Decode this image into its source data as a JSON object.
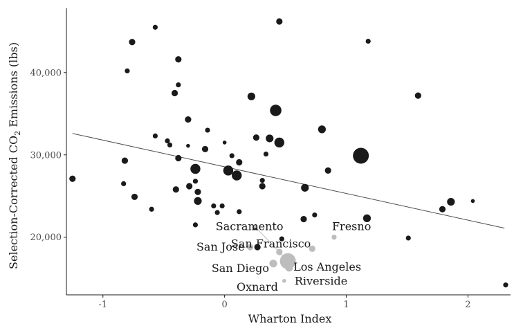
{
  "chart_data": {
    "type": "scatter",
    "xlabel": "Wharton Index",
    "ylabel": {
      "prefix": "Selection-Corrected CO",
      "subscript": "2",
      "suffix": " Emissions (lbs)"
    },
    "xlim": [
      -1.3,
      2.35
    ],
    "ylim": [
      13000,
      47800
    ],
    "x_ticks": [
      -1,
      0,
      1,
      2
    ],
    "x_tick_labels": [
      "-1",
      "0",
      "1",
      "2"
    ],
    "y_ticks": [
      20000,
      30000,
      40000
    ],
    "y_tick_labels": [
      "20,000",
      "30,000",
      "40,000"
    ],
    "grid": false,
    "colors": {
      "points": "#1a1a1a",
      "highlight": "#bdbdbd",
      "fit_line": "#4d4d4d",
      "axis": "#1a1a1a"
    },
    "fit_line": {
      "x": [
        -1.25,
        2.3
      ],
      "y": [
        32600,
        21100
      ]
    },
    "series": [
      {
        "values": [
          {
            "x": -1.25,
            "y": 27100,
            "size": 2
          },
          {
            "x": -0.82,
            "y": 29300,
            "size": 2
          },
          {
            "x": -0.83,
            "y": 26500,
            "size": 1
          },
          {
            "x": -0.8,
            "y": 40200,
            "size": 1
          },
          {
            "x": -0.76,
            "y": 43700,
            "size": 2
          },
          {
            "x": -0.74,
            "y": 24900,
            "size": 2
          },
          {
            "x": -0.6,
            "y": 23400,
            "size": 1
          },
          {
            "x": -0.57,
            "y": 45500,
            "size": 1
          },
          {
            "x": -0.57,
            "y": 32300,
            "size": 1
          },
          {
            "x": -0.47,
            "y": 31700,
            "size": 1
          },
          {
            "x": -0.45,
            "y": 31200,
            "size": 1
          },
          {
            "x": -0.41,
            "y": 37500,
            "size": 2
          },
          {
            "x": -0.38,
            "y": 41600,
            "size": 2
          },
          {
            "x": -0.38,
            "y": 38500,
            "size": 1
          },
          {
            "x": -0.4,
            "y": 25800,
            "size": 2
          },
          {
            "x": -0.38,
            "y": 29600,
            "size": 2
          },
          {
            "x": -0.3,
            "y": 34300,
            "size": 2
          },
          {
            "x": -0.3,
            "y": 31100,
            "size": 0
          },
          {
            "x": -0.29,
            "y": 26200,
            "size": 2
          },
          {
            "x": -0.24,
            "y": 28300,
            "size": 4
          },
          {
            "x": -0.24,
            "y": 26800,
            "size": 1
          },
          {
            "x": -0.22,
            "y": 25500,
            "size": 2
          },
          {
            "x": -0.22,
            "y": 24400,
            "size": 3
          },
          {
            "x": -0.24,
            "y": 21500,
            "size": 1
          },
          {
            "x": -0.16,
            "y": 30700,
            "size": 2
          },
          {
            "x": -0.14,
            "y": 33000,
            "size": 1
          },
          {
            "x": -0.09,
            "y": 23800,
            "size": 1
          },
          {
            "x": -0.06,
            "y": 23000,
            "size": 1
          },
          {
            "x": -0.02,
            "y": 23800,
            "size": 1
          },
          {
            "x": 0.0,
            "y": 31500,
            "size": 0
          },
          {
            "x": 0.03,
            "y": 28100,
            "size": 4
          },
          {
            "x": 0.06,
            "y": 29900,
            "size": 1
          },
          {
            "x": 0.1,
            "y": 27500,
            "size": 4
          },
          {
            "x": 0.12,
            "y": 29100,
            "size": 2
          },
          {
            "x": 0.12,
            "y": 23100,
            "size": 1
          },
          {
            "x": 0.22,
            "y": 37100,
            "size": 3
          },
          {
            "x": 0.26,
            "y": 32100,
            "size": 2
          },
          {
            "x": 0.25,
            "y": 21200,
            "size": 1
          },
          {
            "x": 0.27,
            "y": 18800,
            "size": 2
          },
          {
            "x": 0.31,
            "y": 26200,
            "size": 2
          },
          {
            "x": 0.31,
            "y": 26900,
            "size": 1
          },
          {
            "x": 0.34,
            "y": 30100,
            "size": 1
          },
          {
            "x": 0.37,
            "y": 32000,
            "size": 3
          },
          {
            "x": 0.42,
            "y": 35400,
            "size": 5
          },
          {
            "x": 0.45,
            "y": 31500,
            "size": 4
          },
          {
            "x": 0.45,
            "y": 46200,
            "size": 2
          },
          {
            "x": 0.47,
            "y": 19800,
            "size": 1
          },
          {
            "x": 0.65,
            "y": 22200,
            "size": 2
          },
          {
            "x": 0.66,
            "y": 26000,
            "size": 3
          },
          {
            "x": 0.74,
            "y": 22700,
            "size": 1
          },
          {
            "x": 0.8,
            "y": 33100,
            "size": 3
          },
          {
            "x": 0.85,
            "y": 28100,
            "size": 2
          },
          {
            "x": 1.12,
            "y": 29900,
            "size": 6
          },
          {
            "x": 1.17,
            "y": 22300,
            "size": 3
          },
          {
            "x": 1.18,
            "y": 43800,
            "size": 1
          },
          {
            "x": 1.51,
            "y": 19900,
            "size": 1
          },
          {
            "x": 1.59,
            "y": 37200,
            "size": 2
          },
          {
            "x": 1.79,
            "y": 23400,
            "size": 2
          },
          {
            "x": 1.86,
            "y": 24300,
            "size": 3
          },
          {
            "x": 2.04,
            "y": 24400,
            "size": 0
          },
          {
            "x": 2.31,
            "y": 14200,
            "size": 1
          }
        ]
      },
      {
        "highlight": true,
        "values": [
          {
            "x": 0.9,
            "y": 20000,
            "size": 1,
            "label": "Fresno"
          },
          {
            "x": 0.25,
            "y": 21300,
            "size": 0,
            "label": "Sacramento"
          },
          {
            "x": 0.21,
            "y": 18800,
            "size": 2,
            "label": "San Jose"
          },
          {
            "x": 0.72,
            "y": 18600,
            "size": 2,
            "label": "San Francisco"
          },
          {
            "x": 0.4,
            "y": 16800,
            "size": 3,
            "label": "San Diego"
          },
          {
            "x": 0.52,
            "y": 17100,
            "size": 6,
            "label": "Los Angeles"
          },
          {
            "x": 0.49,
            "y": 14700,
            "size": 0,
            "label": "Oxnard"
          },
          {
            "x": 0.53,
            "y": 16300,
            "size": 3,
            "label": "Riverside"
          },
          {
            "x": 0.45,
            "y": 18200,
            "size": 2
          }
        ]
      }
    ]
  }
}
